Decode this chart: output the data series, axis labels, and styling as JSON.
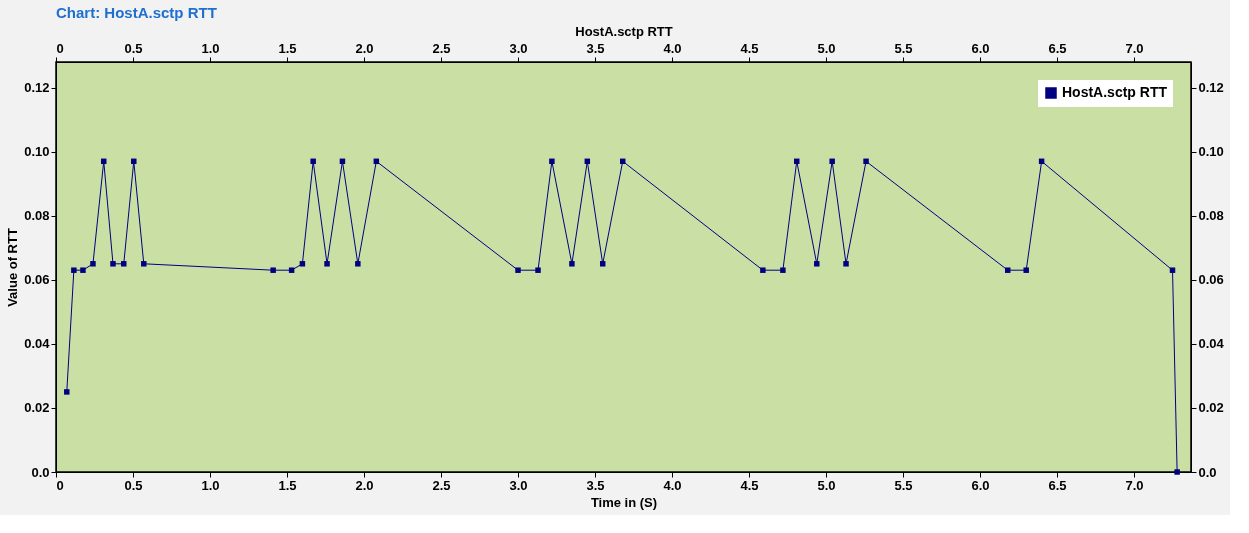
{
  "chart_data": {
    "type": "line",
    "title": "Chart:  HostA.sctp RTT",
    "xlabel": "Time in (S)",
    "x2label": "HostA.sctp RTT",
    "ylabel": "Value of RTT",
    "x": [
      0.07,
      0.116,
      0.175,
      0.24,
      0.31,
      0.37,
      0.44,
      0.505,
      0.57,
      1.41,
      1.53,
      1.6,
      1.67,
      1.76,
      1.86,
      1.96,
      2.08,
      3.0,
      3.13,
      3.22,
      3.35,
      3.45,
      3.55,
      3.68,
      4.59,
      4.72,
      4.81,
      4.94,
      5.04,
      5.13,
      5.26,
      6.18,
      6.3,
      6.4,
      7.25,
      7.28
    ],
    "series": [
      {
        "name": "HostA.sctp RTT",
        "color": "#000080",
        "values": [
          0.025,
          0.063,
          0.063,
          0.065,
          0.097,
          0.065,
          0.065,
          0.097,
          0.065,
          0.063,
          0.063,
          0.065,
          0.097,
          0.065,
          0.097,
          0.065,
          0.097,
          0.063,
          0.063,
          0.097,
          0.065,
          0.097,
          0.065,
          0.097,
          0.063,
          0.063,
          0.097,
          0.065,
          0.097,
          0.065,
          0.097,
          0.063,
          0.063,
          0.097,
          0.063,
          0.0
        ]
      }
    ],
    "xlim": [
      0,
      7.37
    ],
    "xticks": [
      {
        "value": 0,
        "label": "0"
      },
      0.5,
      {
        "value": 1,
        "label": "1.0"
      },
      1.5,
      {
        "value": 2,
        "label": "2.0"
      },
      2.5,
      {
        "value": 3,
        "label": "3.0"
      },
      3.5,
      {
        "value": 4,
        "label": "4.0"
      },
      4.5,
      {
        "value": 5,
        "label": "5.0"
      },
      5.5,
      {
        "value": 6,
        "label": "6.0"
      },
      6.5,
      {
        "value": 7,
        "label": "7.0"
      }
    ],
    "x2lim": [
      0,
      7.37
    ],
    "x2ticks": [
      {
        "value": 0,
        "label": "0"
      },
      0.5,
      {
        "value": 1,
        "label": "1.0"
      },
      1.5,
      {
        "value": 2,
        "label": "2.0"
      },
      2.5,
      {
        "value": 3,
        "label": "3.0"
      },
      3.5,
      {
        "value": 4,
        "label": "4.0"
      },
      4.5,
      {
        "value": 5,
        "label": "5.0"
      },
      5.5,
      {
        "value": 6,
        "label": "6.0"
      },
      6.5,
      {
        "value": 7,
        "label": "7.0"
      }
    ],
    "ylim": [
      0,
      0.128
    ],
    "yticks": [
      {
        "value": 0,
        "label": "0.0"
      },
      0.02,
      0.04,
      0.06,
      0.08,
      {
        "value": 0.1,
        "label": "0.10"
      },
      0.12
    ],
    "y2lim": [
      0,
      0.128
    ],
    "y2ticks": [
      {
        "value": 0,
        "label": "0.0"
      },
      0.02,
      0.04,
      0.06,
      0.08,
      {
        "value": 0.1,
        "label": "0.10"
      },
      0.12
    ],
    "legend": "top right",
    "grid": false,
    "marker": "square",
    "line_style": "solid"
  }
}
